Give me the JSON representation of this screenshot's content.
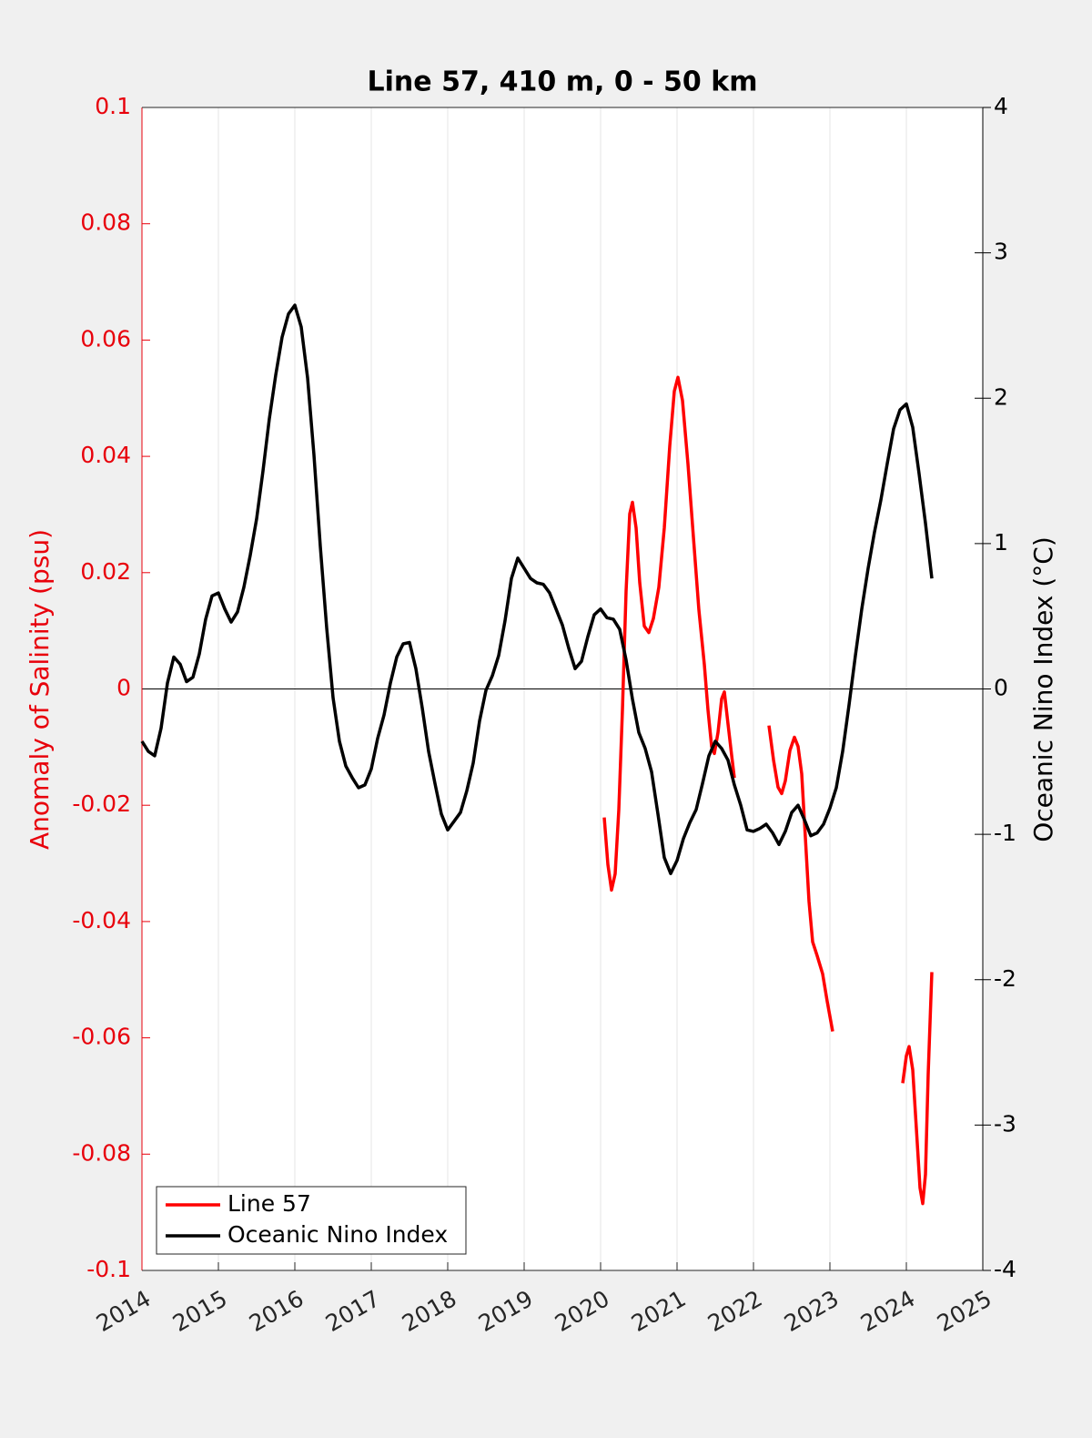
{
  "chart_data": {
    "type": "line",
    "title": "Line 57, 410 m, 0 - 50 km",
    "ylabel": "Anomaly of Salinity (psu)",
    "y2label": "Oceanic Nino Index (°C)",
    "xlim": [
      2014,
      2025
    ],
    "xticks": [
      2014,
      2015,
      2016,
      2017,
      2018,
      2019,
      2020,
      2021,
      2022,
      2023,
      2024,
      2025
    ],
    "ylim": [
      -0.1,
      0.1
    ],
    "yticks": [
      -0.1,
      -0.08,
      -0.06,
      -0.04,
      -0.02,
      0,
      0.02,
      0.04,
      0.06,
      0.08,
      0.1
    ],
    "y2lim": [
      -4,
      4
    ],
    "y2ticks": [
      -4,
      -3,
      -2,
      -1,
      0,
      1,
      2,
      3,
      4
    ],
    "ycolor": "#e8000b",
    "y2color": "#000000",
    "xgrid": true,
    "zero_line": true,
    "legend": "lower left",
    "series": [
      {
        "name": "Line 57",
        "color": "#ff0000",
        "x": [
          2020.048,
          2020.095,
          2020.143,
          2020.19,
          2020.238,
          2020.286,
          2020.333,
          2020.381,
          2020.417,
          2020.464,
          2020.512,
          2020.571,
          2020.631,
          2020.69,
          2020.762,
          2020.833,
          2020.905,
          2020.964,
          2021.012,
          2021.071,
          2021.143,
          2021.214,
          2021.286,
          2021.357,
          2021.405,
          2021.452,
          2021.488,
          2021.536,
          2021.583,
          2021.619,
          2021.667,
          2021.714,
          2021.75,
          null,
          2022.202,
          2022.262,
          2022.321,
          2022.369,
          2022.417,
          2022.476,
          2022.536,
          2022.583,
          2022.631,
          2022.679,
          2022.726,
          2022.774,
          2022.833,
          2022.905,
          2022.964,
          2023.036,
          null,
          2023.952,
          2024.0,
          2024.036,
          2024.083,
          2024.131,
          2024.179,
          2024.214,
          2024.25,
          2024.286,
          2024.333
        ],
        "values": [
          -0.0221,
          -0.0302,
          -0.0346,
          -0.0318,
          -0.0208,
          -0.0036,
          0.0168,
          0.0301,
          0.0321,
          0.0277,
          0.0183,
          0.0108,
          0.0097,
          0.0121,
          0.0175,
          0.0277,
          0.0418,
          0.0512,
          0.0536,
          0.0496,
          0.0387,
          0.0261,
          0.0136,
          0.0042,
          -0.0036,
          -0.0099,
          -0.0111,
          -0.0075,
          -0.0017,
          -0.0005,
          -0.006,
          -0.0114,
          -0.0153,
          null,
          -0.0063,
          -0.0122,
          -0.0169,
          -0.018,
          -0.0158,
          -0.0106,
          -0.0083,
          -0.0099,
          -0.0146,
          -0.0255,
          -0.0365,
          -0.0435,
          -0.0459,
          -0.049,
          -0.0537,
          -0.0589,
          null,
          -0.0678,
          -0.0631,
          -0.0615,
          -0.0655,
          -0.0756,
          -0.0858,
          -0.0885,
          -0.0835,
          -0.0662,
          -0.0487
        ]
      },
      {
        "name": "Oceanic Nino Index",
        "color": "#000000",
        "axis": "y2",
        "x": [
          2014,
          2014.083,
          2014.167,
          2014.25,
          2014.333,
          2014.417,
          2014.5,
          2014.583,
          2014.667,
          2014.75,
          2014.833,
          2014.917,
          2015,
          2015.083,
          2015.167,
          2015.25,
          2015.333,
          2015.417,
          2015.5,
          2015.583,
          2015.667,
          2015.75,
          2015.833,
          2015.917,
          2016,
          2016.083,
          2016.167,
          2016.25,
          2016.333,
          2016.417,
          2016.5,
          2016.583,
          2016.667,
          2016.75,
          2016.833,
          2016.917,
          2017,
          2017.083,
          2017.167,
          2017.25,
          2017.333,
          2017.417,
          2017.5,
          2017.583,
          2017.667,
          2017.75,
          2017.833,
          2017.917,
          2018,
          2018.083,
          2018.167,
          2018.25,
          2018.333,
          2018.417,
          2018.5,
          2018.583,
          2018.667,
          2018.75,
          2018.833,
          2018.917,
          2019,
          2019.083,
          2019.167,
          2019.25,
          2019.333,
          2019.417,
          2019.5,
          2019.583,
          2019.667,
          2019.75,
          2019.833,
          2019.917,
          2020,
          2020.083,
          2020.167,
          2020.25,
          2020.333,
          2020.417,
          2020.5,
          2020.583,
          2020.667,
          2020.75,
          2020.833,
          2020.917,
          2021,
          2021.083,
          2021.167,
          2021.25,
          2021.333,
          2021.417,
          2021.5,
          2021.583,
          2021.667,
          2021.75,
          2021.833,
          2021.917,
          2022,
          2022.083,
          2022.167,
          2022.25,
          2022.333,
          2022.417,
          2022.5,
          2022.583,
          2022.667,
          2022.75,
          2022.833,
          2022.917,
          2023,
          2023.083,
          2023.167,
          2023.25,
          2023.333,
          2023.417,
          2023.5,
          2023.583,
          2023.667,
          2023.75,
          2023.833,
          2023.917,
          2024,
          2024.083,
          2024.167,
          2024.25,
          2024.333
        ],
        "values": [
          -0.36,
          -0.43,
          -0.46,
          -0.27,
          0.04,
          0.22,
          0.17,
          0.05,
          0.08,
          0.24,
          0.48,
          0.64,
          0.66,
          0.55,
          0.46,
          0.53,
          0.7,
          0.92,
          1.17,
          1.5,
          1.86,
          2.16,
          2.42,
          2.58,
          2.64,
          2.49,
          2.14,
          1.61,
          0.98,
          0.42,
          -0.06,
          -0.36,
          -0.53,
          -0.61,
          -0.68,
          -0.66,
          -0.55,
          -0.34,
          -0.18,
          0.04,
          0.22,
          0.31,
          0.32,
          0.14,
          -0.13,
          -0.43,
          -0.65,
          -0.86,
          -0.97,
          -0.91,
          -0.85,
          -0.7,
          -0.51,
          -0.22,
          -0.01,
          0.09,
          0.23,
          0.47,
          0.76,
          0.9,
          0.83,
          0.76,
          0.73,
          0.72,
          0.66,
          0.55,
          0.44,
          0.28,
          0.14,
          0.19,
          0.36,
          0.51,
          0.55,
          0.49,
          0.48,
          0.41,
          0.2,
          -0.07,
          -0.3,
          -0.41,
          -0.57,
          -0.86,
          -1.16,
          -1.27,
          -1.18,
          -1.03,
          -0.92,
          -0.83,
          -0.65,
          -0.46,
          -0.36,
          -0.41,
          -0.49,
          -0.66,
          -0.8,
          -0.97,
          -0.98,
          -0.96,
          -0.93,
          -0.99,
          -1.07,
          -0.98,
          -0.85,
          -0.8,
          -0.9,
          -1.01,
          -0.99,
          -0.93,
          -0.82,
          -0.68,
          -0.43,
          -0.11,
          0.23,
          0.55,
          0.83,
          1.08,
          1.3,
          1.55,
          1.79,
          1.92,
          1.96,
          1.8,
          1.48,
          1.14,
          0.76
        ]
      }
    ]
  }
}
